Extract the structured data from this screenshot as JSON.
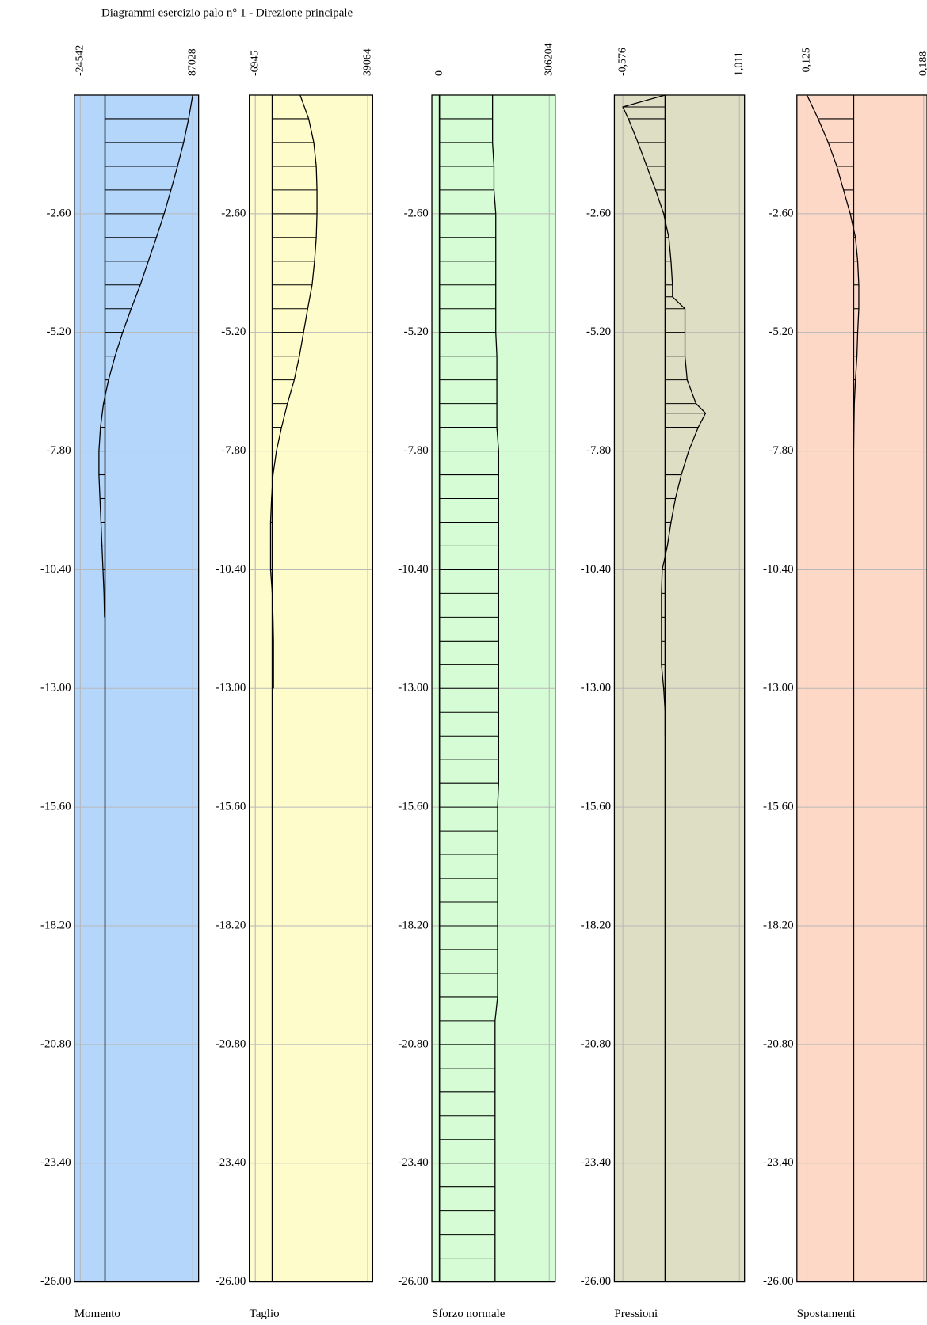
{
  "title": "Diagrammi esercizio palo n° 1  -  Direzione principale",
  "ylim": [
    -26,
    0
  ],
  "yticks": [
    {
      "value": -2.6,
      "label": "-2.60"
    },
    {
      "value": -5.2,
      "label": "-5.20"
    },
    {
      "value": -7.8,
      "label": "-7.80"
    },
    {
      "value": -10.4,
      "label": "-10.40"
    },
    {
      "value": -13,
      "label": "-13.00"
    },
    {
      "value": -15.6,
      "label": "-15.60"
    },
    {
      "value": -18.2,
      "label": "-18.20"
    },
    {
      "value": -20.8,
      "label": "-20.80"
    },
    {
      "value": -23.4,
      "label": "-23.40"
    },
    {
      "value": -26,
      "label": "-26.00"
    }
  ],
  "chart_data": [
    {
      "type": "line",
      "title": "Momento",
      "color": "#b4d6fa",
      "xlim": [
        -30400,
        92900
      ],
      "xticks": [
        -24542,
        87028
      ],
      "y": [
        0,
        -0.52,
        -1.04,
        -1.56,
        -2.08,
        -2.6,
        -3.12,
        -3.64,
        -4.16,
        -4.68,
        -5.2,
        -5.72,
        -6.24,
        -6.76,
        -7.28,
        -7.8,
        -8.32,
        -8.84,
        -9.36,
        -9.88,
        -10.4,
        -10.92,
        -11.44
      ],
      "values": [
        87028,
        83000,
        78000,
        72000,
        65500,
        58700,
        51000,
        43000,
        35000,
        26000,
        17500,
        10000,
        3500,
        -1500,
        -4500,
        -6000,
        -6000,
        -5000,
        -4000,
        -3000,
        -2000,
        -1000,
        -500
      ]
    },
    {
      "type": "line",
      "title": "Taglio",
      "color": "#fffccc",
      "xlim": [
        -9400,
        41100
      ],
      "xticks": [
        -6945,
        39064
      ],
      "y": [
        0,
        -0.52,
        -1.04,
        -1.56,
        -2.08,
        -2.6,
        -3.12,
        -3.64,
        -4.16,
        -4.68,
        -5.2,
        -5.72,
        -6.24,
        -6.76,
        -7.28,
        -7.8,
        -8.32,
        -8.84,
        -9.36,
        -9.88,
        -10.4,
        -10.92,
        -11.44,
        -11.96,
        -12.48,
        -13
      ],
      "values": [
        11400,
        14900,
        17000,
        18000,
        18300,
        18300,
        18000,
        17300,
        16300,
        14500,
        12800,
        11100,
        9000,
        6200,
        3800,
        1700,
        300,
        -300,
        -700,
        -700,
        -700,
        0,
        300,
        500,
        500,
        500
      ]
    },
    {
      "type": "line",
      "title": "Sforzo normale",
      "color": "#d6fcd6",
      "xlim": [
        -21200,
        322700
      ],
      "xticks": [
        0,
        306204
      ],
      "y": [
        0,
        -0.52,
        -1.04,
        -1.56,
        -2.08,
        -2.6,
        -3.12,
        -3.64,
        -4.16,
        -4.68,
        -5.2,
        -5.72,
        -6.24,
        -6.76,
        -7.28,
        -7.8,
        -8.32,
        -8.84,
        -9.36,
        -9.88,
        -10.4,
        -10.92,
        -11.44,
        -11.96,
        -12.48,
        -13,
        -13.52,
        -14.04,
        -14.56,
        -15.08,
        -15.6,
        -16.12,
        -16.64,
        -17.16,
        -17.68,
        -18.2,
        -18.72,
        -19.24,
        -19.76,
        -20.28,
        -20.8,
        -21.32,
        -21.84,
        -22.36,
        -22.88,
        -23.4,
        -23.92,
        -24.44,
        -24.96,
        -25.48,
        -26
      ],
      "values": [
        148000,
        148000,
        148000,
        152000,
        152000,
        157000,
        157000,
        157000,
        157000,
        157000,
        157000,
        160000,
        160000,
        160000,
        160000,
        165000,
        165000,
        165000,
        165000,
        165000,
        165000,
        165000,
        165000,
        165000,
        165000,
        165000,
        165000,
        165000,
        165000,
        165000,
        162000,
        162000,
        162000,
        162000,
        162000,
        162000,
        162000,
        162000,
        162000,
        155000,
        155000,
        155000,
        155000,
        155000,
        155000,
        155000,
        155000,
        155000,
        155000,
        155000,
        155000
      ]
    },
    {
      "type": "line",
      "title": "Pressioni",
      "color": "#dedec4",
      "xlim": [
        -0.691,
        1.08
      ],
      "xticks": [
        {
          "value": -0.576,
          "label": "-0,576"
        },
        {
          "value": 1.011,
          "label": "1,011"
        }
      ],
      "y": [
        0,
        -0.26,
        -0.52,
        -1.04,
        -1.56,
        -2.08,
        -2.6,
        -3.12,
        -3.64,
        -4.16,
        -4.42,
        -4.68,
        -5.2,
        -5.72,
        -6.24,
        -6.76,
        -6.97,
        -7.28,
        -7.8,
        -8.32,
        -8.84,
        -9.36,
        -9.88,
        -10.4,
        -10.92,
        -11.44,
        -11.96,
        -12.48,
        -13,
        -13.52,
        -14.04
      ],
      "values": [
        0,
        -0.576,
        -0.5,
        -0.37,
        -0.25,
        -0.13,
        -0.02,
        0.05,
        0.08,
        0.1,
        0.1,
        0.27,
        0.27,
        0.27,
        0.3,
        0.42,
        0.55,
        0.45,
        0.32,
        0.22,
        0.14,
        0.08,
        0.03,
        -0.04,
        -0.05,
        -0.05,
        -0.05,
        -0.05,
        -0.02,
        0,
        0
      ]
    },
    {
      "type": "line",
      "title": "Spostamenti",
      "color": "#fdd8c6",
      "xlim": [
        -0.152,
        0.197
      ],
      "xticks": [
        {
          "value": -0.125,
          "label": "-0,125"
        },
        {
          "value": 0.188,
          "label": "0,188"
        }
      ],
      "y": [
        0,
        -0.52,
        -1.04,
        -1.56,
        -2.08,
        -2.6,
        -3.12,
        -3.64,
        -4.16,
        -4.68,
        -5.2,
        -5.72,
        -6.24,
        -6.76,
        -7.28,
        -7.8,
        -8.32
      ],
      "values": [
        -0.125,
        -0.095,
        -0.068,
        -0.045,
        -0.027,
        -0.009,
        0.005,
        0.011,
        0.014,
        0.014,
        0.011,
        0.009,
        0.005,
        0.002,
        0.001,
        0,
        0
      ]
    }
  ]
}
